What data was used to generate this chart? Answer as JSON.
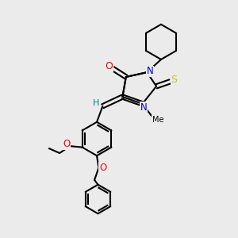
{
  "background_color": "#ebebeb",
  "bond_color": "#000000",
  "bond_width": 1.5,
  "atom_colors": {
    "O": "#ff0000",
    "N": "#0000cc",
    "S": "#cccc00",
    "H": "#008080",
    "C": "#000000"
  },
  "figsize": [
    3.0,
    3.0
  ],
  "dpi": 100,
  "xlim": [
    0,
    10
  ],
  "ylim": [
    0,
    10
  ]
}
